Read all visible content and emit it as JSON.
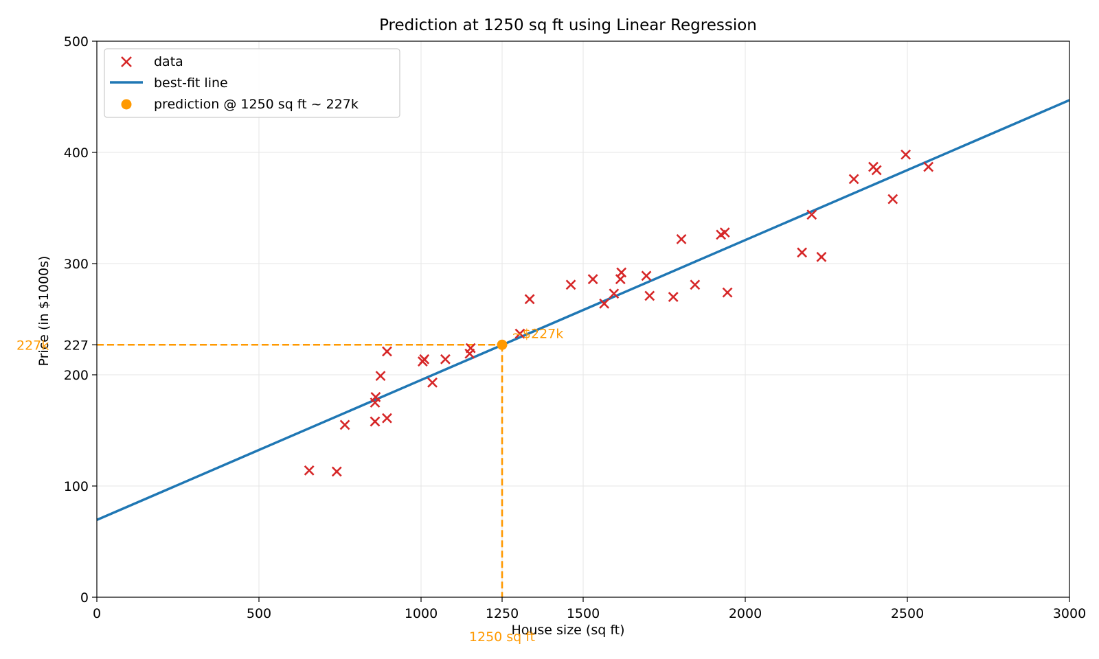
{
  "chart_data": {
    "type": "scatter",
    "title": "Prediction at 1250 sq ft using Linear Regression",
    "xlabel": "House size (sq ft)",
    "ylabel": "Price (in $1000s)",
    "xlim": [
      0,
      3000
    ],
    "ylim": [
      0,
      500
    ],
    "x_ticks": [
      0,
      500,
      1000,
      1250,
      1500,
      2000,
      2500,
      3000
    ],
    "y_ticks": [
      0,
      100,
      200,
      227,
      300,
      400,
      500
    ],
    "grid": true,
    "legend_position": "top-left",
    "colors": {
      "data": "#d62728",
      "line": "#1f77b4",
      "prediction": "#ff9900"
    },
    "series": [
      {
        "name": "data",
        "kind": "scatter",
        "marker": "x",
        "points": [
          [
            655,
            114
          ],
          [
            740,
            113
          ],
          [
            765,
            155
          ],
          [
            858,
            158
          ],
          [
            858,
            175
          ],
          [
            860,
            180
          ],
          [
            875,
            199
          ],
          [
            895,
            161
          ],
          [
            895,
            221
          ],
          [
            1005,
            212
          ],
          [
            1010,
            214
          ],
          [
            1035,
            193
          ],
          [
            1075,
            214
          ],
          [
            1150,
            219
          ],
          [
            1153,
            224
          ],
          [
            1305,
            237
          ],
          [
            1335,
            268
          ],
          [
            1462,
            281
          ],
          [
            1530,
            286
          ],
          [
            1565,
            264
          ],
          [
            1595,
            273
          ],
          [
            1615,
            286
          ],
          [
            1618,
            292
          ],
          [
            1695,
            289
          ],
          [
            1705,
            271
          ],
          [
            1778,
            270
          ],
          [
            1803,
            322
          ],
          [
            1845,
            281
          ],
          [
            1925,
            326
          ],
          [
            1937,
            328
          ],
          [
            1945,
            274
          ],
          [
            2175,
            310
          ],
          [
            2205,
            344
          ],
          [
            2235,
            306
          ],
          [
            2335,
            376
          ],
          [
            2395,
            387
          ],
          [
            2405,
            384
          ],
          [
            2455,
            358
          ],
          [
            2495,
            398
          ],
          [
            2565,
            387
          ]
        ]
      },
      {
        "name": "best-fit line",
        "kind": "line",
        "points": [
          [
            0,
            69.5
          ],
          [
            3000,
            447
          ]
        ]
      },
      {
        "name": "prediction @ 1250 sq ft ~ 227k",
        "kind": "point",
        "points": [
          [
            1250,
            227
          ]
        ]
      }
    ],
    "annotations": {
      "point_label": "~$227k",
      "x_marker_label": "1250 sq ft",
      "y_marker_label": "227k"
    }
  }
}
